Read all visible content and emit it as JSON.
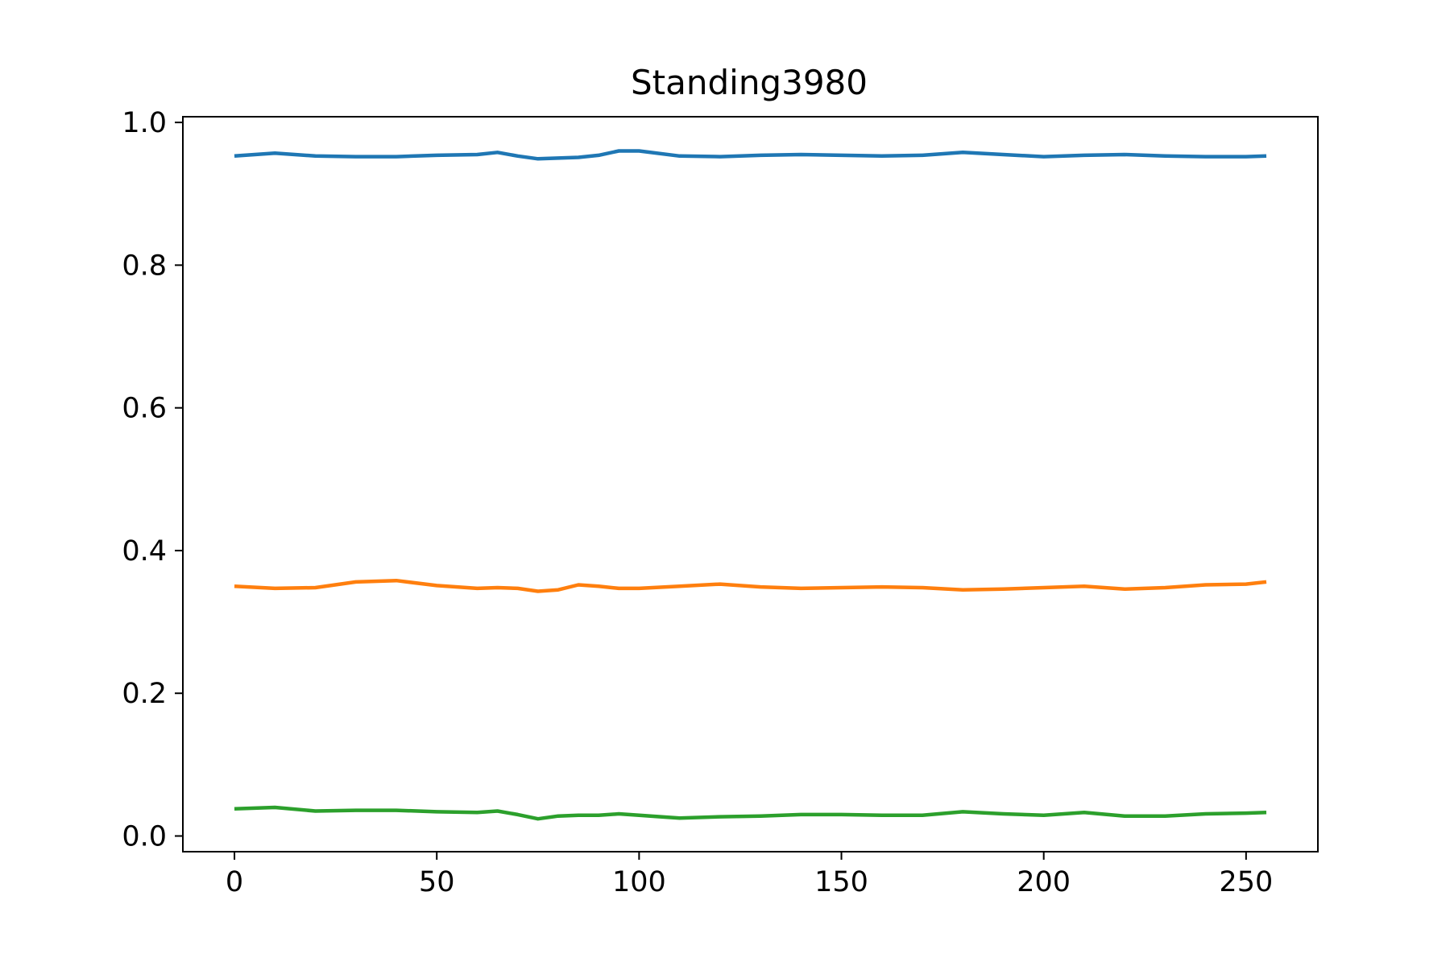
{
  "chart_data": {
    "type": "line",
    "title": "Standing3980",
    "xlabel": "",
    "ylabel": "",
    "xlim": [
      -12.75,
      267.75
    ],
    "ylim": [
      -0.022,
      1.008
    ],
    "grid": false,
    "x_ticks": [
      0,
      50,
      100,
      150,
      200,
      250
    ],
    "x_tick_labels": [
      "0",
      "50",
      "100",
      "150",
      "200",
      "250"
    ],
    "y_ticks": [
      0.0,
      0.2,
      0.4,
      0.6,
      0.8,
      1.0
    ],
    "y_tick_labels": [
      "0.0",
      "0.2",
      "0.4",
      "0.6",
      "0.8",
      "1.0"
    ],
    "series_x": [
      0,
      10,
      20,
      30,
      40,
      50,
      60,
      65,
      70,
      75,
      80,
      85,
      90,
      95,
      100,
      110,
      120,
      130,
      140,
      150,
      160,
      170,
      180,
      190,
      200,
      210,
      220,
      230,
      240,
      250,
      255
    ],
    "series": [
      {
        "color": "#1f77b4",
        "values": [
          0.953,
          0.957,
          0.953,
          0.952,
          0.952,
          0.954,
          0.955,
          0.958,
          0.953,
          0.949,
          0.95,
          0.951,
          0.954,
          0.96,
          0.96,
          0.953,
          0.952,
          0.954,
          0.955,
          0.954,
          0.953,
          0.954,
          0.958,
          0.955,
          0.952,
          0.954,
          0.955,
          0.953,
          0.952,
          0.952,
          0.953
        ]
      },
      {
        "color": "#ff7f0e",
        "values": [
          0.35,
          0.347,
          0.348,
          0.356,
          0.358,
          0.351,
          0.347,
          0.348,
          0.347,
          0.343,
          0.345,
          0.352,
          0.35,
          0.347,
          0.347,
          0.35,
          0.353,
          0.349,
          0.347,
          0.348,
          0.349,
          0.348,
          0.345,
          0.346,
          0.348,
          0.35,
          0.346,
          0.348,
          0.352,
          0.353,
          0.356
        ]
      },
      {
        "color": "#2ca02c",
        "values": [
          0.038,
          0.04,
          0.035,
          0.036,
          0.036,
          0.034,
          0.033,
          0.035,
          0.03,
          0.024,
          0.028,
          0.029,
          0.029,
          0.031,
          0.029,
          0.025,
          0.027,
          0.028,
          0.03,
          0.03,
          0.029,
          0.029,
          0.034,
          0.031,
          0.029,
          0.033,
          0.028,
          0.028,
          0.031,
          0.032,
          0.033
        ]
      }
    ]
  }
}
